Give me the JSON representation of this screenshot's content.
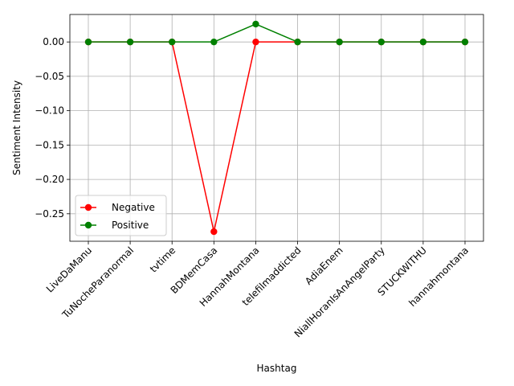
{
  "chart_data": {
    "type": "line",
    "categories": [
      "LiveDaManu",
      "TuNocheParanormal",
      "tvtime",
      "BDMemCasa",
      "HannahMontana",
      "telefilmaddicted",
      "AdiaEnem",
      "NiallHoranIsAnAngelParty",
      "STUCKWITHU",
      "hannahmontana"
    ],
    "series": [
      {
        "name": "Negative",
        "color": "#ff0000",
        "values": [
          0,
          0,
          0,
          -0.276,
          0,
          0,
          0,
          0,
          0,
          0
        ]
      },
      {
        "name": "Positive",
        "color": "#008000",
        "values": [
          0,
          0,
          0,
          0,
          0.026,
          0,
          0,
          0,
          0,
          0
        ]
      }
    ],
    "xlabel": "Hashtag",
    "ylabel": "Sentiment Intensity",
    "ylim": [
      -0.29,
      0.04
    ],
    "yticks": [
      0.0,
      -0.05,
      -0.1,
      -0.15,
      -0.2,
      -0.25
    ],
    "ytick_labels": [
      "0.00",
      "−0.05",
      "−0.10",
      "−0.15",
      "−0.20",
      "−0.25"
    ],
    "grid": true,
    "legend_position": "lower-left",
    "marker": "circle"
  }
}
